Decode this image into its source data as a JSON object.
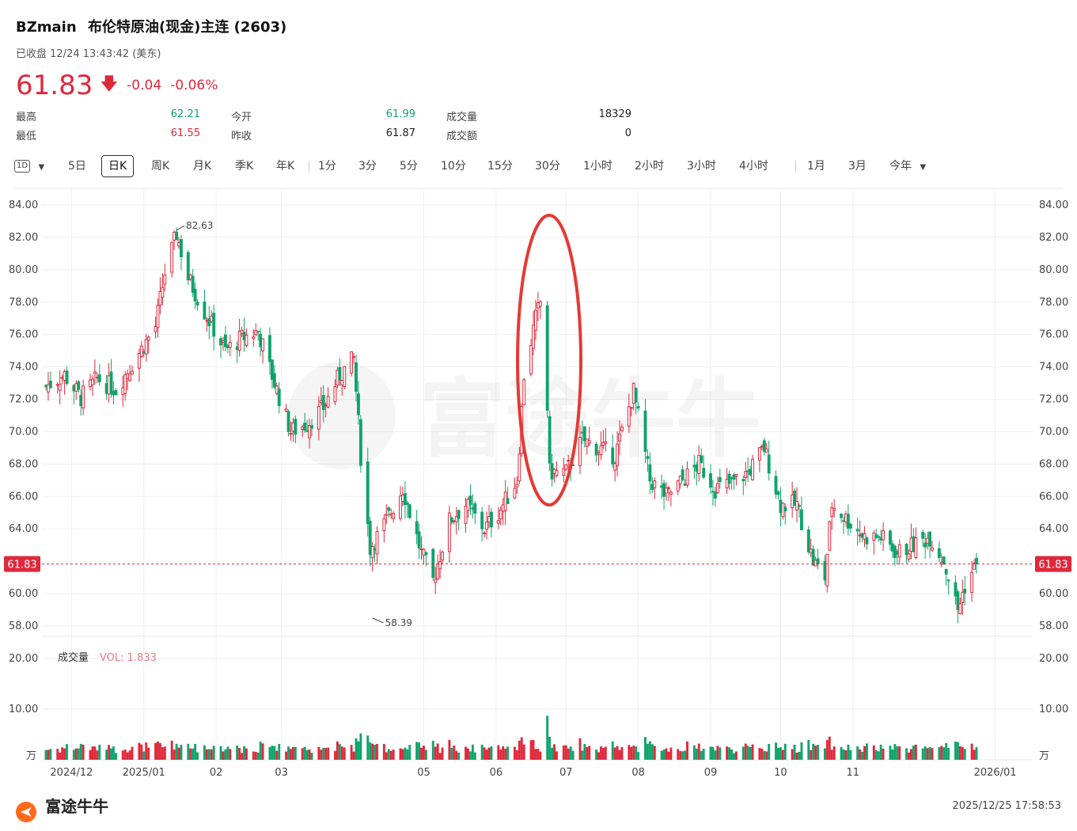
{
  "header": {
    "symbol": "BZmain",
    "name": "布伦特原油(现金)主连 (2603)",
    "status": "已收盘 12/24 13:43:42 (美东)",
    "price": "61.83",
    "change": "-0.04",
    "change_pct": "-0.06%"
  },
  "stats": [
    {
      "label": "最高",
      "value": "62.21",
      "color": "green"
    },
    {
      "label": "最低",
      "value": "61.55",
      "color": "red"
    },
    {
      "label": "今开",
      "value": "61.99",
      "color": "green"
    },
    {
      "label": "昨收",
      "value": "61.87",
      "color": "dark"
    },
    {
      "label": "成交量",
      "value": "18329",
      "color": "dark"
    },
    {
      "label": "成交额",
      "value": "0",
      "color": "dark"
    }
  ],
  "toolbar": {
    "period_icon": "1D",
    "items": [
      "5日",
      "日K",
      "周K",
      "月K",
      "季K",
      "年K",
      "1分",
      "3分",
      "5分",
      "10分",
      "15分",
      "30分",
      "1小时",
      "2小时",
      "3小时",
      "4小时",
      "1月",
      "3月",
      "今年"
    ],
    "active": "日K"
  },
  "colors": {
    "up": "#e0283b",
    "down": "#0fa36b",
    "highlight_ellipse": "#e53935"
  },
  "watermark": "富途牛牛",
  "footer": {
    "logo_text": "富途牛牛",
    "timestamp": "2025/12/25 17:58:53"
  },
  "chart_data": {
    "type": "candlestick",
    "price_axis": {
      "ticks": [
        "84.00",
        "82.00",
        "80.00",
        "78.00",
        "76.00",
        "74.00",
        "72.00",
        "70.00",
        "68.00",
        "66.00",
        "64.00",
        "62.00",
        "60.00",
        "58.00"
      ],
      "ylim": [
        57.5,
        84.5
      ]
    },
    "current_price_label": "61.83",
    "annotations": {
      "high_label": "82.63",
      "low_label": "58.39"
    },
    "x_labels": [
      "2024/12",
      "2025/01",
      "02",
      "03",
      "05",
      "06",
      "07",
      "08",
      "09",
      "10",
      "11",
      "2026/01"
    ],
    "volume_label": "成交量",
    "volume_value_label": "VOL: 1.833",
    "volume_axis": {
      "ticks": [
        "20.00",
        "10.00"
      ],
      "unit": "万",
      "ylim": [
        0,
        20
      ]
    },
    "close_series": [
      {
        "date": "2024-11-20",
        "close": 72.8
      },
      {
        "date": "2024-11-28",
        "close": 73.5
      },
      {
        "date": "2024-12-05",
        "close": 72.1
      },
      {
        "date": "2024-12-12",
        "close": 73.3
      },
      {
        "date": "2024-12-20",
        "close": 72.6
      },
      {
        "date": "2024-12-27",
        "close": 74.2
      },
      {
        "date": "2025-01-06",
        "close": 76.5
      },
      {
        "date": "2025-01-10",
        "close": 79.8
      },
      {
        "date": "2025-01-15",
        "close": 82.2
      },
      {
        "date": "2025-01-20",
        "close": 79.5
      },
      {
        "date": "2025-01-27",
        "close": 77.4
      },
      {
        "date": "2025-02-05",
        "close": 75.0
      },
      {
        "date": "2025-02-12",
        "close": 75.8
      },
      {
        "date": "2025-02-19",
        "close": 76.2
      },
      {
        "date": "2025-02-26",
        "close": 73.0
      },
      {
        "date": "2025-03-05",
        "close": 70.0
      },
      {
        "date": "2025-03-12",
        "close": 70.5
      },
      {
        "date": "2025-03-19",
        "close": 71.5
      },
      {
        "date": "2025-03-26",
        "close": 73.5
      },
      {
        "date": "2025-04-01",
        "close": 74.5
      },
      {
        "date": "2025-04-04",
        "close": 68.5
      },
      {
        "date": "2025-04-08",
        "close": 62.8
      },
      {
        "date": "2025-04-15",
        "close": 64.5
      },
      {
        "date": "2025-04-22",
        "close": 66.5
      },
      {
        "date": "2025-04-30",
        "close": 62.5
      },
      {
        "date": "2025-05-05",
        "close": 60.8
      },
      {
        "date": "2025-05-12",
        "close": 64.5
      },
      {
        "date": "2025-05-19",
        "close": 65.5
      },
      {
        "date": "2025-05-27",
        "close": 64.0
      },
      {
        "date": "2025-06-02",
        "close": 65.0
      },
      {
        "date": "2025-06-10",
        "close": 67.0
      },
      {
        "date": "2025-06-13",
        "close": 73.5
      },
      {
        "date": "2025-06-18",
        "close": 77.0
      },
      {
        "date": "2025-06-20",
        "close": 78.0
      },
      {
        "date": "2025-06-23",
        "close": 71.5
      },
      {
        "date": "2025-06-24",
        "close": 67.5
      },
      {
        "date": "2025-07-01",
        "close": 67.5
      },
      {
        "date": "2025-07-08",
        "close": 69.5
      },
      {
        "date": "2025-07-15",
        "close": 69.0
      },
      {
        "date": "2025-07-22",
        "close": 68.5
      },
      {
        "date": "2025-07-30",
        "close": 72.5
      },
      {
        "date": "2025-08-06",
        "close": 67.0
      },
      {
        "date": "2025-08-13",
        "close": 66.0
      },
      {
        "date": "2025-08-20",
        "close": 67.0
      },
      {
        "date": "2025-08-27",
        "close": 68.0
      },
      {
        "date": "2025-09-03",
        "close": 66.5
      },
      {
        "date": "2025-09-10",
        "close": 66.8
      },
      {
        "date": "2025-09-17",
        "close": 67.5
      },
      {
        "date": "2025-09-24",
        "close": 69.0
      },
      {
        "date": "2025-10-01",
        "close": 65.5
      },
      {
        "date": "2025-10-08",
        "close": 65.5
      },
      {
        "date": "2025-10-15",
        "close": 62.0
      },
      {
        "date": "2025-10-20",
        "close": 61.0
      },
      {
        "date": "2025-10-23",
        "close": 65.5
      },
      {
        "date": "2025-10-30",
        "close": 64.5
      },
      {
        "date": "2025-11-06",
        "close": 63.5
      },
      {
        "date": "2025-11-13",
        "close": 63.5
      },
      {
        "date": "2025-11-20",
        "close": 62.5
      },
      {
        "date": "2025-11-27",
        "close": 63.0
      },
      {
        "date": "2025-12-04",
        "close": 63.5
      },
      {
        "date": "2025-12-10",
        "close": 62.0
      },
      {
        "date": "2025-12-16",
        "close": 59.0
      },
      {
        "date": "2025-12-19",
        "close": 60.5
      },
      {
        "date": "2025-12-24",
        "close": 61.83
      }
    ]
  }
}
